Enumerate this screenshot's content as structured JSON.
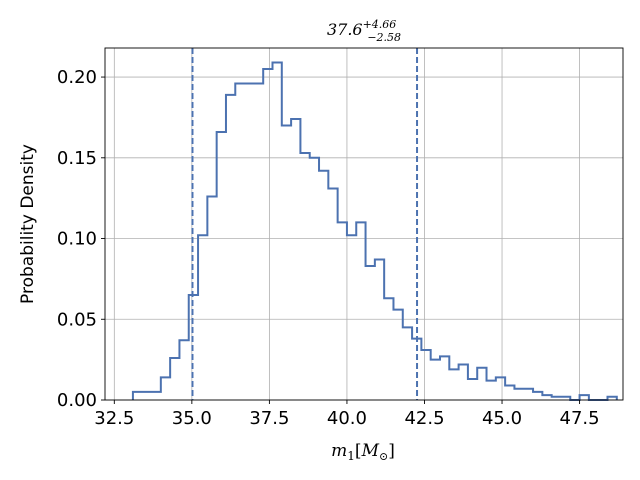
{
  "chart_data": {
    "type": "histogram",
    "title": {
      "base": "37.6",
      "sup": "+4.66",
      "sub": "−2.58"
    },
    "xlabel": {
      "m": "m",
      "sub": "1",
      "unit_open": "[",
      "unit": "M",
      "unit_sub": "⊙",
      "unit_close": "]"
    },
    "ylabel": "Probability Density",
    "xlim": [
      32.2,
      48.9
    ],
    "ylim": [
      0.0,
      0.218
    ],
    "xticks": [
      32.5,
      35.0,
      37.5,
      40.0,
      42.5,
      45.0,
      47.5
    ],
    "xtick_labels": [
      "32.5",
      "35.0",
      "37.5",
      "40.0",
      "42.5",
      "45.0",
      "47.5"
    ],
    "yticks": [
      0.0,
      0.05,
      0.1,
      0.15,
      0.2
    ],
    "ytick_labels": [
      "0.00",
      "0.05",
      "0.10",
      "0.15",
      "0.20"
    ],
    "grid": true,
    "color": "#4c72b0",
    "bins": {
      "start": 33.1,
      "width": 0.3,
      "values": [
        0.005,
        0.005,
        0.005,
        0.014,
        0.026,
        0.037,
        0.065,
        0.102,
        0.126,
        0.166,
        0.189,
        0.196,
        0.196,
        0.196,
        0.205,
        0.209,
        0.17,
        0.174,
        0.153,
        0.15,
        0.142,
        0.131,
        0.11,
        0.102,
        0.11,
        0.083,
        0.087,
        0.063,
        0.056,
        0.045,
        0.038,
        0.031,
        0.025,
        0.027,
        0.019,
        0.022,
        0.013,
        0.02,
        0.012,
        0.014,
        0.009,
        0.007,
        0.007,
        0.005,
        0.003,
        0.002,
        0.002,
        0.0,
        0.003,
        0.0,
        0.0,
        0.002
      ]
    },
    "quantile_lines": [
      35.02,
      42.26
    ]
  }
}
